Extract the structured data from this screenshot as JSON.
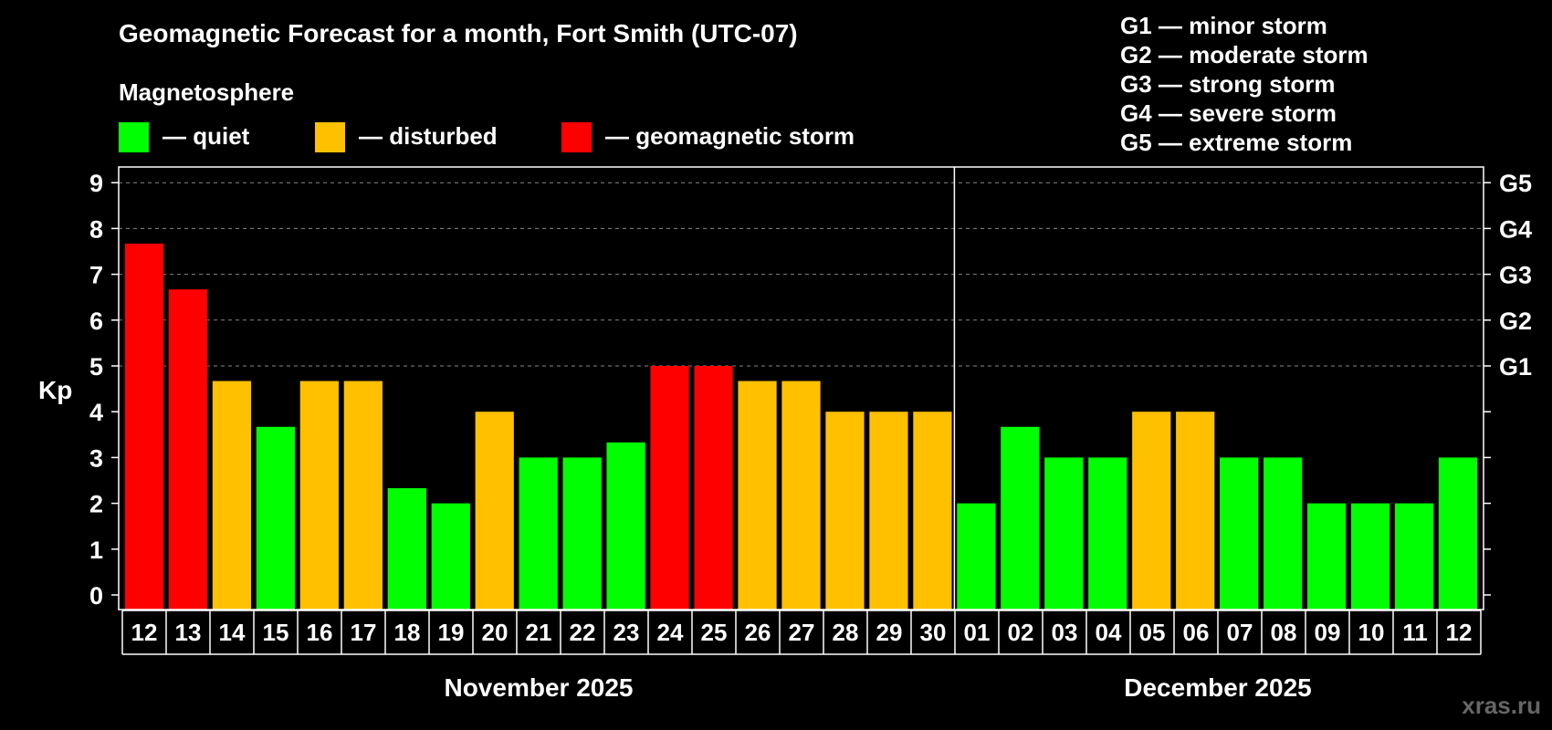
{
  "chart_data": {
    "type": "bar",
    "title": "Geomagnetic Forecast for a month, Fort Smith (UTC-07)",
    "ylabel": "Kp",
    "ylim": [
      0,
      9
    ],
    "y_ticks": [
      "0",
      "1",
      "2",
      "3",
      "4",
      "5",
      "6",
      "7",
      "8",
      "9"
    ],
    "right_axis_labels": [
      {
        "label": "G1",
        "kp": 5
      },
      {
        "label": "G2",
        "kp": 6
      },
      {
        "label": "G3",
        "kp": 7
      },
      {
        "label": "G4",
        "kp": 8
      },
      {
        "label": "G5",
        "kp": 9
      }
    ],
    "legend_title": "Magnetosphere",
    "legend": [
      {
        "label": "— quiet",
        "color": "#00ff00"
      },
      {
        "label": "— disturbed",
        "color": "#ffc000"
      },
      {
        "label": "— geomagnetic storm",
        "color": "#ff0000"
      }
    ],
    "storm_scale": [
      "G1 — minor storm",
      "G2 — moderate storm",
      "G3 — strong storm",
      "G4 — severe storm",
      "G5 — extreme storm"
    ],
    "months": [
      {
        "label": "November 2025",
        "from_index": 0,
        "to_index": 18
      },
      {
        "label": "December 2025",
        "from_index": 19,
        "to_index": 30
      }
    ],
    "colors": {
      "quiet": "#00ff00",
      "disturbed": "#ffc000",
      "storm": "#ff0000"
    },
    "categories": [
      "12",
      "13",
      "14",
      "15",
      "16",
      "17",
      "18",
      "19",
      "20",
      "21",
      "22",
      "23",
      "24",
      "25",
      "26",
      "27",
      "28",
      "29",
      "30",
      "01",
      "02",
      "03",
      "04",
      "05",
      "06",
      "07",
      "08",
      "09",
      "10",
      "11",
      "12"
    ],
    "values": [
      7.67,
      6.67,
      4.67,
      3.67,
      4.67,
      4.67,
      2.33,
      2.0,
      4.0,
      3.0,
      3.0,
      3.33,
      5.0,
      5.0,
      4.67,
      4.67,
      4.0,
      4.0,
      4.0,
      2.0,
      3.67,
      3.0,
      3.0,
      4.0,
      4.0,
      3.0,
      3.0,
      2.0,
      2.0,
      2.0,
      3.0
    ],
    "status": [
      "storm",
      "storm",
      "disturbed",
      "quiet",
      "disturbed",
      "disturbed",
      "quiet",
      "quiet",
      "disturbed",
      "quiet",
      "quiet",
      "quiet",
      "storm",
      "storm",
      "disturbed",
      "disturbed",
      "disturbed",
      "disturbed",
      "disturbed",
      "quiet",
      "quiet",
      "quiet",
      "quiet",
      "disturbed",
      "disturbed",
      "quiet",
      "quiet",
      "quiet",
      "quiet",
      "quiet",
      "quiet"
    ],
    "watermark": "xras.ru"
  }
}
